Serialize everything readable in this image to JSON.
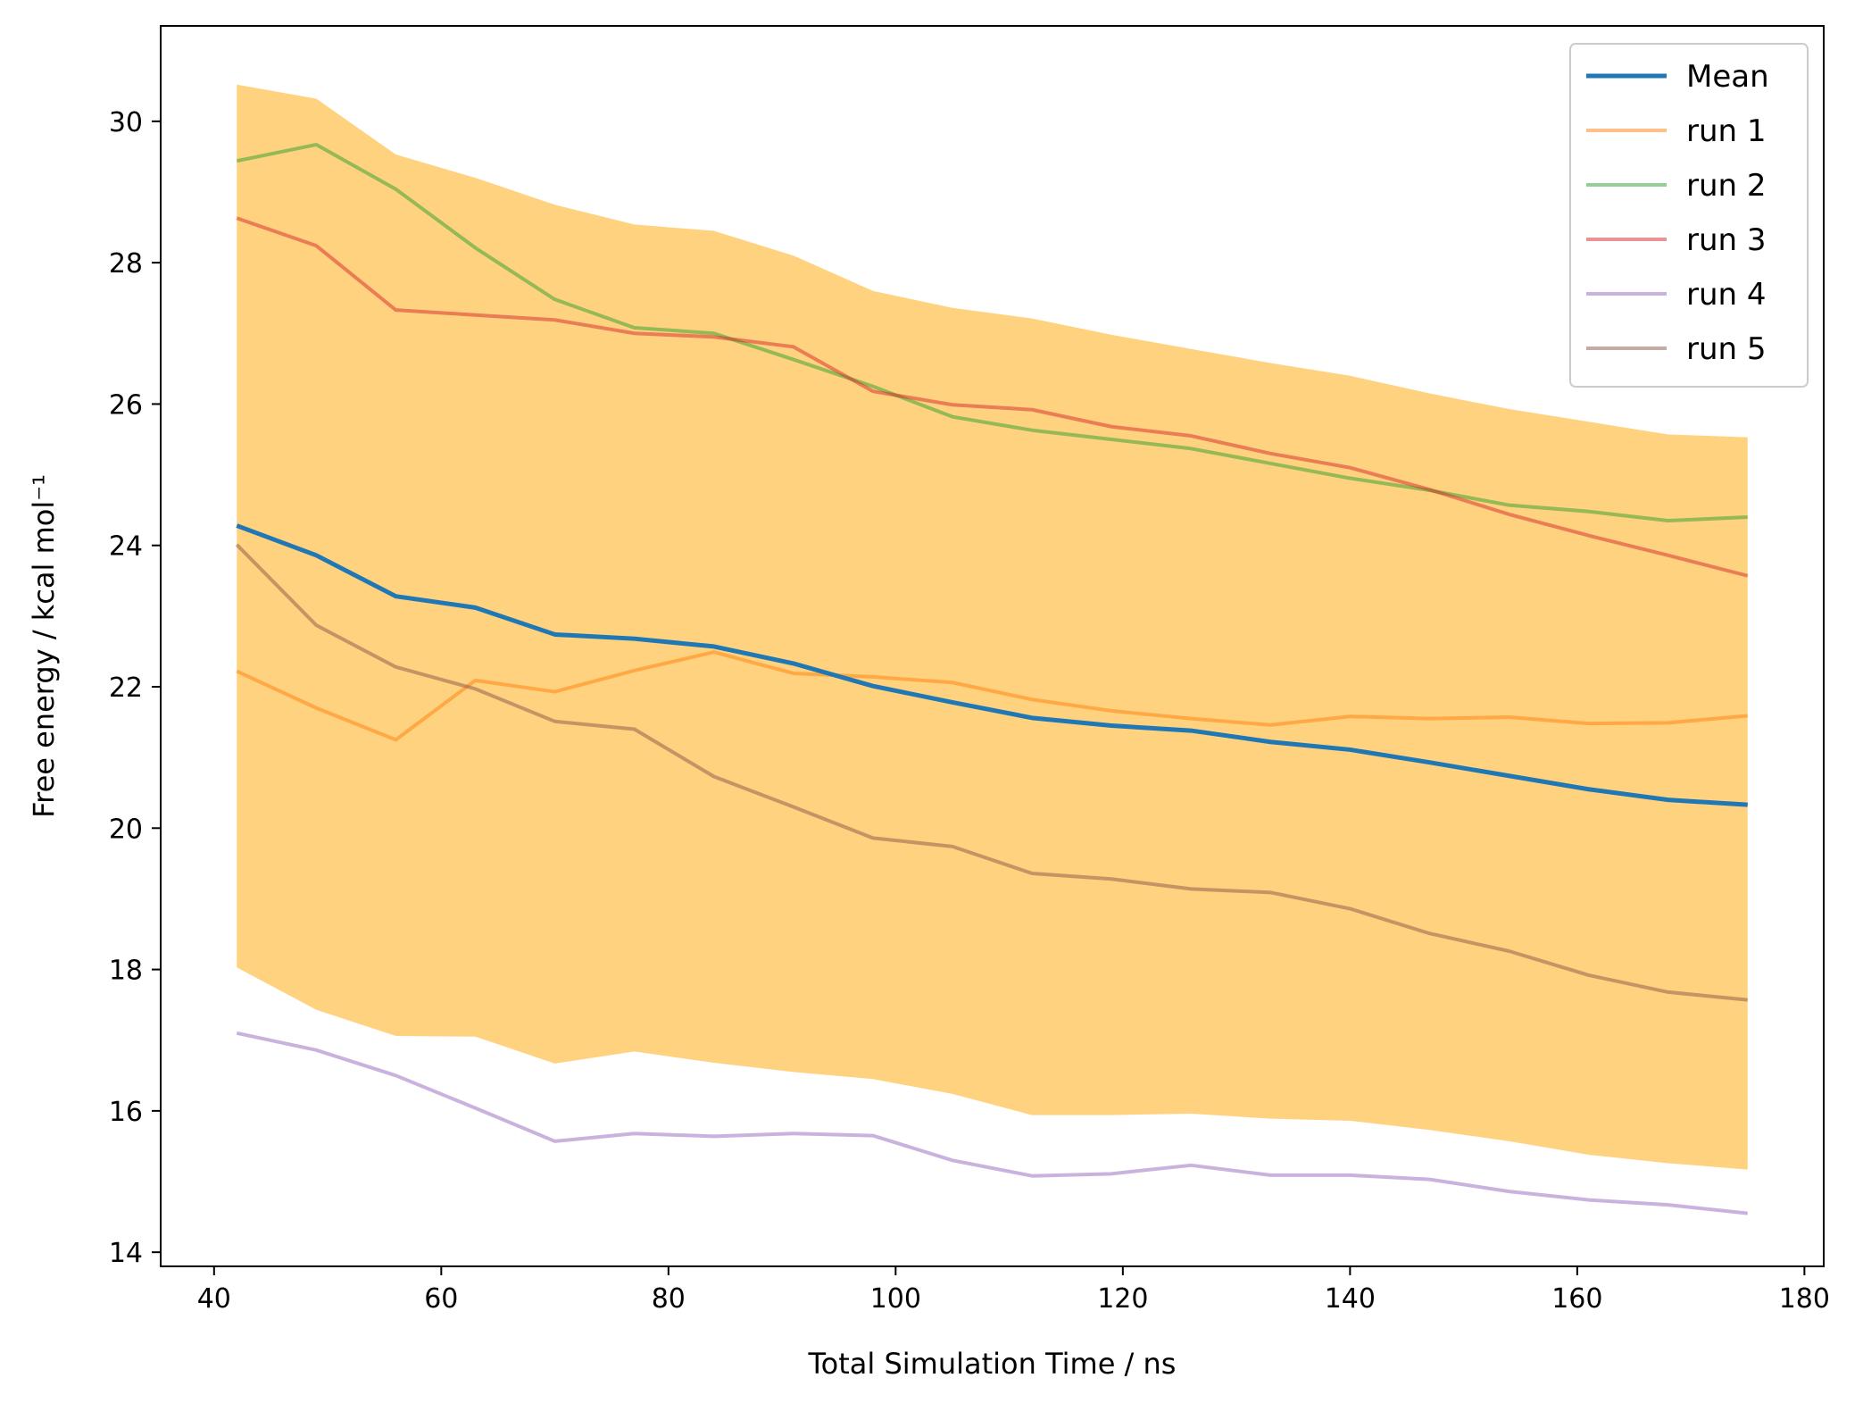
{
  "chart_data": {
    "type": "line",
    "xlabel": "Total Simulation Time / ns",
    "ylabel": "Free energy / kcal mol⁻¹",
    "xlim": [
      35.3,
      181.7
    ],
    "ylim": [
      13.8,
      31.35
    ],
    "xticks": [
      40,
      60,
      80,
      100,
      120,
      140,
      160,
      180
    ],
    "yticks": [
      14,
      16,
      18,
      20,
      22,
      24,
      26,
      28,
      30
    ],
    "grid": false,
    "legend_position": "top-right",
    "x": [
      42,
      49,
      56,
      63,
      70,
      77,
      84,
      91,
      98,
      105,
      112,
      119,
      126,
      133,
      140,
      147,
      154,
      161,
      168,
      175
    ],
    "band": {
      "color": "#ffa500",
      "upper": [
        30.52,
        30.32,
        29.53,
        29.2,
        28.82,
        28.54,
        28.45,
        28.1,
        27.6,
        27.36,
        27.21,
        26.98,
        26.78,
        26.58,
        26.4,
        26.15,
        25.93,
        25.75,
        25.57,
        25.53
      ],
      "lower": [
        18.03,
        17.43,
        17.06,
        17.05,
        16.67,
        16.84,
        16.68,
        16.55,
        16.45,
        16.24,
        15.94,
        15.94,
        15.96,
        15.89,
        15.86,
        15.73,
        15.57,
        15.38,
        15.26,
        15.17
      ]
    },
    "series": [
      {
        "name": "Mean",
        "color": "#1f77b4",
        "values": [
          24.28,
          23.86,
          23.28,
          23.12,
          22.74,
          22.68,
          22.57,
          22.33,
          22.01,
          21.78,
          21.56,
          21.45,
          21.38,
          21.22,
          21.11,
          20.93,
          20.74,
          20.55,
          20.4,
          20.33
        ]
      },
      {
        "name": "run 1",
        "color": "#ff7f0e",
        "values": [
          22.22,
          21.7,
          21.25,
          22.09,
          21.93,
          22.23,
          22.49,
          22.19,
          22.14,
          22.06,
          21.82,
          21.66,
          21.55,
          21.46,
          21.58,
          21.55,
          21.57,
          21.48,
          21.49,
          21.59
        ]
      },
      {
        "name": "run 2",
        "color": "#2ca02c",
        "values": [
          29.44,
          29.67,
          29.04,
          28.21,
          27.48,
          27.08,
          27.0,
          26.63,
          26.25,
          25.82,
          25.63,
          25.5,
          25.37,
          25.16,
          24.95,
          24.78,
          24.57,
          24.48,
          24.35,
          24.4
        ]
      },
      {
        "name": "run 3",
        "color": "#d62728",
        "values": [
          28.63,
          28.24,
          27.33,
          27.26,
          27.19,
          27.0,
          26.95,
          26.81,
          26.18,
          25.99,
          25.92,
          25.68,
          25.55,
          25.3,
          25.1,
          24.79,
          24.44,
          24.14,
          23.86,
          23.57
        ]
      },
      {
        "name": "run 4",
        "color": "#9467bd",
        "values": [
          17.1,
          16.86,
          16.5,
          16.04,
          15.57,
          15.68,
          15.64,
          15.68,
          15.65,
          15.3,
          15.08,
          15.11,
          15.23,
          15.09,
          15.09,
          15.03,
          14.86,
          14.74,
          14.67,
          14.55
        ]
      },
      {
        "name": "run 5",
        "color": "#8c564b",
        "values": [
          24.01,
          22.87,
          22.28,
          21.97,
          21.51,
          21.4,
          20.73,
          20.3,
          19.86,
          19.74,
          19.36,
          19.28,
          19.14,
          19.09,
          18.86,
          18.51,
          18.26,
          17.92,
          17.68,
          17.57
        ]
      }
    ]
  }
}
